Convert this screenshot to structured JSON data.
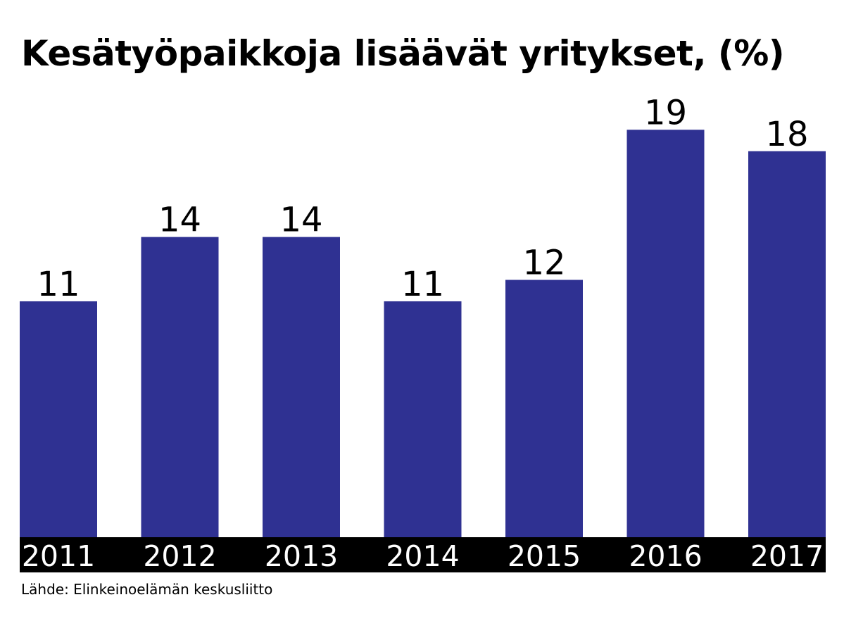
{
  "chart_data": {
    "type": "bar",
    "title": "Kesätyöpaikkoja lisäävät yritykset, (%)",
    "categories": [
      "2011",
      "2012",
      "2013",
      "2014",
      "2015",
      "2016",
      "2017"
    ],
    "values": [
      11,
      14,
      14,
      11,
      12,
      19,
      18
    ],
    "xlabel": "",
    "ylabel": "",
    "ylim": [
      0,
      19.7
    ],
    "grid": false,
    "legend": "none",
    "data_labels": true,
    "bar_color": "#2f3192",
    "axis_band_color": "#000000",
    "axis_label_color": "#ffffff"
  },
  "source": "Lähde: Elinkeinoelämän keskusliitto"
}
